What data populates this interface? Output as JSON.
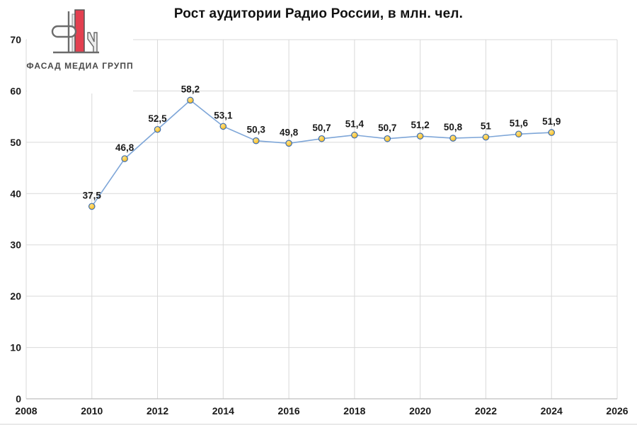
{
  "logo": {
    "text": "ФАСАД МЕДИА ГРУПП"
  },
  "chart_data": {
    "type": "line",
    "title": "Рост аудитории Радио России, в млн. чел.",
    "x": [
      2010,
      2011,
      2012,
      2013,
      2014,
      2015,
      2016,
      2017,
      2018,
      2019,
      2020,
      2021,
      2022,
      2023,
      2024
    ],
    "values": [
      37.5,
      46.8,
      52.5,
      58.2,
      53.1,
      50.3,
      49.8,
      50.7,
      51.4,
      50.7,
      51.2,
      50.8,
      51,
      51.6,
      51.9
    ],
    "point_labels": [
      "37,5",
      "46,8",
      "52,5",
      "58,2",
      "53,1",
      "50,3",
      "49,8",
      "50,7",
      "51,4",
      "50,7",
      "51,2",
      "50,8",
      "51",
      "51,6",
      "51,9"
    ],
    "x_ticks": [
      2008,
      2010,
      2012,
      2014,
      2016,
      2018,
      2020,
      2022,
      2024,
      2026
    ],
    "y_ticks": [
      0,
      10,
      20,
      30,
      40,
      50,
      60,
      70
    ],
    "xlim": [
      2008,
      2026
    ],
    "ylim": [
      0,
      70
    ],
    "grid": true,
    "legend": false,
    "colors": {
      "line": "#7ea6d8",
      "marker_fill": "#ffc000",
      "marker_highlight": "#ffe289",
      "marker_stroke": "#3f6fae",
      "gridline": "#d9d9d9",
      "axis_line": "#bfbfbf",
      "text": "#1a1a1a",
      "logo_red": "#e34050",
      "logo_gray": "#6b6b6b"
    }
  }
}
